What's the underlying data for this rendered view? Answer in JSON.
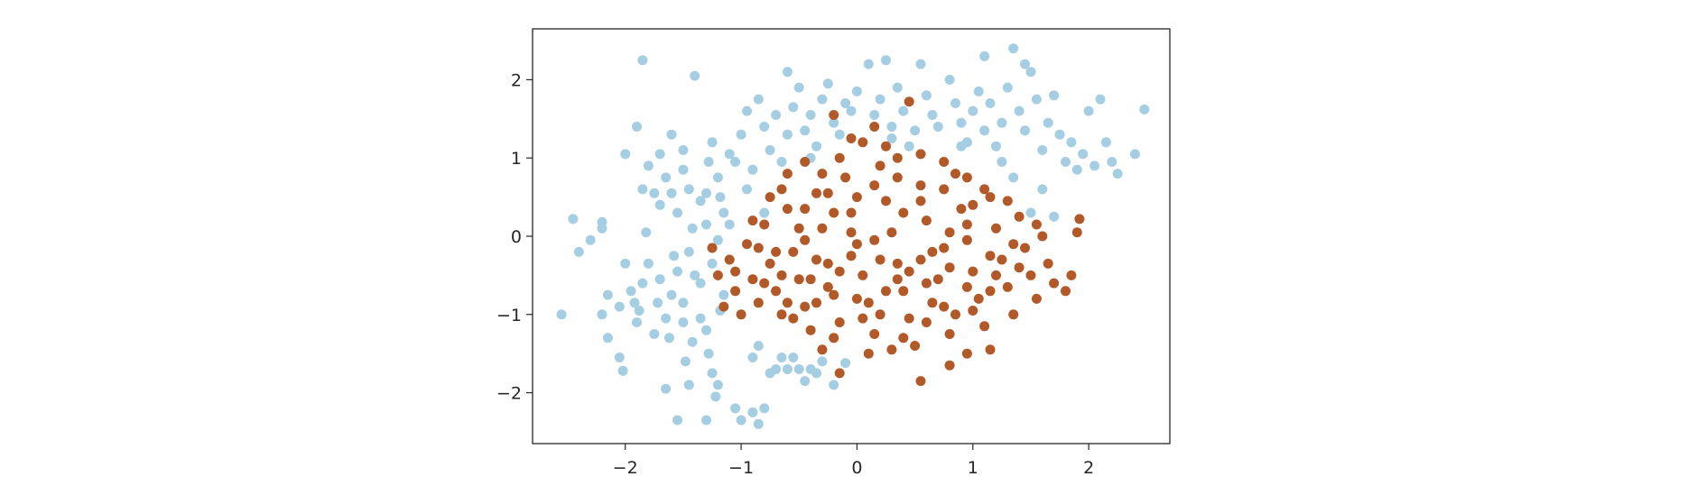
{
  "chart_data": {
    "type": "scatter",
    "xlim": [
      -2.8,
      2.7
    ],
    "ylim": [
      -2.65,
      2.65
    ],
    "x_ticks": [
      -2,
      -1,
      0,
      1,
      2
    ],
    "y_ticks": [
      -2,
      -1,
      0,
      1,
      2
    ],
    "x_tick_labels": [
      "−2",
      "−1",
      "0",
      "1",
      "2"
    ],
    "y_tick_labels": [
      "−2",
      "−1",
      "0",
      "1",
      "2"
    ],
    "grid": false,
    "legend": "none",
    "series": [
      {
        "color": "#a6cee3",
        "points": [
          [
            -2.55,
            -1.0
          ],
          [
            -2.45,
            0.22
          ],
          [
            -2.4,
            -0.2
          ],
          [
            -2.3,
            -0.05
          ],
          [
            -2.2,
            0.18
          ],
          [
            -2.2,
            0.1
          ],
          [
            -2.15,
            -0.75
          ],
          [
            -2.15,
            -1.3
          ],
          [
            -2.05,
            -1.55
          ],
          [
            -2.02,
            -1.72
          ],
          [
            -2.05,
            -0.9
          ],
          [
            -2.0,
            -0.35
          ],
          [
            -1.95,
            -0.7
          ],
          [
            -1.92,
            -0.85
          ],
          [
            -1.9,
            -1.1
          ],
          [
            -1.85,
            -0.6
          ],
          [
            -1.88,
            -0.95
          ],
          [
            -1.82,
            0.05
          ],
          [
            -1.8,
            -0.35
          ],
          [
            -1.75,
            -1.25
          ],
          [
            -1.72,
            -0.85
          ],
          [
            -1.7,
            -0.55
          ],
          [
            -1.65,
            -1.05
          ],
          [
            -1.62,
            -1.3
          ],
          [
            -1.6,
            -0.75
          ],
          [
            -1.58,
            -0.25
          ],
          [
            -1.55,
            -0.45
          ],
          [
            -1.5,
            -0.85
          ],
          [
            -1.5,
            -1.1
          ],
          [
            -1.48,
            -1.6
          ],
          [
            -1.45,
            -1.9
          ],
          [
            -1.42,
            -1.35
          ],
          [
            -1.4,
            -0.5
          ],
          [
            -1.35,
            -1.05
          ],
          [
            -1.3,
            -1.2
          ],
          [
            -1.28,
            -1.5
          ],
          [
            -1.25,
            -1.75
          ],
          [
            -1.22,
            -2.05
          ],
          [
            -1.2,
            -1.9
          ],
          [
            -1.18,
            -0.95
          ],
          [
            -1.15,
            -0.75
          ],
          [
            -1.1,
            -0.3
          ],
          [
            -1.05,
            -2.2
          ],
          [
            -1.0,
            -2.35
          ],
          [
            -0.9,
            -2.25
          ],
          [
            -0.85,
            -2.4
          ],
          [
            -0.8,
            -2.2
          ],
          [
            -0.75,
            -1.75
          ],
          [
            -0.7,
            -1.7
          ],
          [
            -0.65,
            -1.55
          ],
          [
            -0.6,
            -1.7
          ],
          [
            -0.55,
            -1.55
          ],
          [
            -0.5,
            -1.7
          ],
          [
            -0.45,
            -1.85
          ],
          [
            -0.4,
            -1.7
          ],
          [
            -0.35,
            -1.75
          ],
          [
            -0.3,
            -1.6
          ],
          [
            -0.2,
            -1.9
          ],
          [
            -0.1,
            -1.62
          ],
          [
            -0.85,
            -1.4
          ],
          [
            -0.9,
            -1.55
          ],
          [
            -1.3,
            -2.35
          ],
          [
            -1.55,
            -2.35
          ],
          [
            -1.65,
            -1.95
          ],
          [
            -2.2,
            -1.0
          ],
          [
            -1.85,
            0.6
          ],
          [
            -1.75,
            0.55
          ],
          [
            -1.7,
            0.4
          ],
          [
            -1.65,
            0.75
          ],
          [
            -1.6,
            0.55
          ],
          [
            -1.55,
            0.3
          ],
          [
            -1.5,
            0.85
          ],
          [
            -1.45,
            0.6
          ],
          [
            -1.42,
            0.1
          ],
          [
            -1.35,
            0.45
          ],
          [
            -1.3,
            0.55
          ],
          [
            -1.28,
            0.95
          ],
          [
            -1.25,
            1.2
          ],
          [
            -1.2,
            0.75
          ],
          [
            -1.18,
            0.5
          ],
          [
            -1.15,
            0.3
          ],
          [
            -1.1,
            1.05
          ],
          [
            -1.05,
            0.95
          ],
          [
            -1.0,
            1.3
          ],
          [
            -0.95,
            1.6
          ],
          [
            -0.9,
            0.85
          ],
          [
            -0.85,
            1.75
          ],
          [
            -0.8,
            1.4
          ],
          [
            -0.75,
            1.1
          ],
          [
            -0.7,
            1.55
          ],
          [
            -0.65,
            0.95
          ],
          [
            -0.6,
            1.3
          ],
          [
            -0.55,
            1.65
          ],
          [
            -0.5,
            1.9
          ],
          [
            -0.45,
            1.35
          ],
          [
            -0.4,
            1.55
          ],
          [
            -0.35,
            1.15
          ],
          [
            -0.3,
            1.75
          ],
          [
            -0.25,
            1.95
          ],
          [
            -0.2,
            1.45
          ],
          [
            -0.15,
            1.3
          ],
          [
            -0.1,
            1.7
          ],
          [
            -0.05,
            1.6
          ],
          [
            0.0,
            1.85
          ],
          [
            0.1,
            2.2
          ],
          [
            0.15,
            1.55
          ],
          [
            0.2,
            1.75
          ],
          [
            0.25,
            2.25
          ],
          [
            0.3,
            1.4
          ],
          [
            0.35,
            1.9
          ],
          [
            0.4,
            1.6
          ],
          [
            0.5,
            1.35
          ],
          [
            0.55,
            2.2
          ],
          [
            0.6,
            1.8
          ],
          [
            0.65,
            1.55
          ],
          [
            0.7,
            1.4
          ],
          [
            0.8,
            2.0
          ],
          [
            0.85,
            1.7
          ],
          [
            0.9,
            1.45
          ],
          [
            0.95,
            1.2
          ],
          [
            1.0,
            1.6
          ],
          [
            1.05,
            1.85
          ],
          [
            1.1,
            1.35
          ],
          [
            1.15,
            1.7
          ],
          [
            1.2,
            1.15
          ],
          [
            1.25,
            1.45
          ],
          [
            1.3,
            1.9
          ],
          [
            1.35,
            2.4
          ],
          [
            1.4,
            1.6
          ],
          [
            1.45,
            1.35
          ],
          [
            1.5,
            2.1
          ],
          [
            1.55,
            1.75
          ],
          [
            1.6,
            1.1
          ],
          [
            1.65,
            1.45
          ],
          [
            1.7,
            1.8
          ],
          [
            1.75,
            1.3
          ],
          [
            1.8,
            0.95
          ],
          [
            1.85,
            1.2
          ],
          [
            1.9,
            0.85
          ],
          [
            1.95,
            1.05
          ],
          [
            2.0,
            1.6
          ],
          [
            2.05,
            0.9
          ],
          [
            2.1,
            1.75
          ],
          [
            2.15,
            1.2
          ],
          [
            2.2,
            0.95
          ],
          [
            2.25,
            0.8
          ],
          [
            2.4,
            1.05
          ],
          [
            2.48,
            1.62
          ],
          [
            -2.0,
            1.05
          ],
          [
            -1.9,
            1.4
          ],
          [
            -1.8,
            0.9
          ],
          [
            -1.7,
            1.05
          ],
          [
            -1.6,
            1.3
          ],
          [
            -1.5,
            1.1
          ],
          [
            -1.4,
            2.05
          ],
          [
            -1.85,
            2.25
          ],
          [
            -0.6,
            2.1
          ],
          [
            -0.4,
            1.0
          ],
          [
            0.3,
            1.25
          ],
          [
            1.1,
            2.3
          ],
          [
            1.45,
            2.2
          ],
          [
            1.25,
            0.95
          ],
          [
            1.35,
            0.75
          ],
          [
            1.6,
            0.6
          ],
          [
            1.5,
            0.3
          ],
          [
            1.7,
            0.25
          ],
          [
            0.9,
            1.15
          ],
          [
            0.45,
            1.15
          ],
          [
            -1.3,
            0.15
          ],
          [
            -1.2,
            -0.05
          ],
          [
            -1.1,
            0.15
          ],
          [
            -0.95,
            0.6
          ],
          [
            -0.8,
            0.3
          ],
          [
            -1.45,
            -0.2
          ],
          [
            -1.35,
            -0.6
          ],
          [
            -1.25,
            -0.35
          ]
        ]
      },
      {
        "color": "#b15928",
        "points": [
          [
            -1.2,
            -0.5
          ],
          [
            -1.15,
            -0.9
          ],
          [
            -1.1,
            -0.3
          ],
          [
            -1.05,
            -0.7
          ],
          [
            -1.0,
            -1.0
          ],
          [
            -0.95,
            -0.1
          ],
          [
            -0.9,
            -0.55
          ],
          [
            -0.85,
            -0.85
          ],
          [
            -0.8,
            0.15
          ],
          [
            -0.75,
            -0.35
          ],
          [
            -0.7,
            -0.7
          ],
          [
            -0.65,
            -1.0
          ],
          [
            -0.6,
            0.35
          ],
          [
            -0.55,
            -0.2
          ],
          [
            -0.5,
            -0.55
          ],
          [
            -0.45,
            -0.9
          ],
          [
            -0.4,
            -1.2
          ],
          [
            -0.35,
            0.55
          ],
          [
            -0.3,
            0.1
          ],
          [
            -0.25,
            -0.35
          ],
          [
            -0.2,
            -0.75
          ],
          [
            -0.15,
            -1.1
          ],
          [
            -0.1,
            0.75
          ],
          [
            -0.05,
            0.3
          ],
          [
            0.0,
            -0.1
          ],
          [
            0.05,
            -0.5
          ],
          [
            0.1,
            -0.85
          ],
          [
            0.15,
            -1.25
          ],
          [
            0.2,
            0.9
          ],
          [
            0.25,
            0.45
          ],
          [
            0.3,
            0.05
          ],
          [
            0.35,
            -0.35
          ],
          [
            0.4,
            -0.7
          ],
          [
            0.45,
            -1.05
          ],
          [
            0.5,
            -1.4
          ],
          [
            0.55,
            0.65
          ],
          [
            0.6,
            0.2
          ],
          [
            0.65,
            -0.2
          ],
          [
            0.7,
            -0.55
          ],
          [
            0.75,
            -0.9
          ],
          [
            0.8,
            -1.25
          ],
          [
            0.85,
            0.8
          ],
          [
            0.9,
            0.35
          ],
          [
            0.95,
            -0.05
          ],
          [
            1.0,
            -0.45
          ],
          [
            1.05,
            -0.8
          ],
          [
            1.1,
            -1.15
          ],
          [
            1.15,
            0.5
          ],
          [
            1.2,
            0.1
          ],
          [
            1.25,
            -0.3
          ],
          [
            1.3,
            -0.65
          ],
          [
            1.35,
            -1.0
          ],
          [
            1.4,
            0.25
          ],
          [
            1.45,
            -0.15
          ],
          [
            1.5,
            -0.5
          ],
          [
            1.55,
            -0.8
          ],
          [
            1.6,
            0.0
          ],
          [
            1.65,
            -0.35
          ],
          [
            1.7,
            -0.6
          ],
          [
            1.8,
            -0.7
          ],
          [
            1.85,
            -0.5
          ],
          [
            1.9,
            0.05
          ],
          [
            1.92,
            0.22
          ],
          [
            -1.25,
            -0.15
          ],
          [
            -0.9,
            0.2
          ],
          [
            -0.75,
            0.5
          ],
          [
            -0.6,
            0.8
          ],
          [
            -0.45,
            0.95
          ],
          [
            -0.3,
            0.8
          ],
          [
            -0.15,
            1.0
          ],
          [
            0.05,
            1.2
          ],
          [
            0.15,
            1.4
          ],
          [
            0.35,
            1.0
          ],
          [
            0.45,
            1.72
          ],
          [
            0.55,
            1.05
          ],
          [
            0.75,
            0.95
          ],
          [
            0.95,
            0.75
          ],
          [
            1.1,
            0.6
          ],
          [
            1.3,
            0.45
          ],
          [
            -0.2,
            1.55
          ],
          [
            -0.05,
            1.25
          ],
          [
            0.25,
            1.15
          ],
          [
            -0.7,
            -0.2
          ],
          [
            -0.5,
            0.1
          ],
          [
            -0.35,
            -0.3
          ],
          [
            -0.2,
            0.3
          ],
          [
            0.0,
            0.5
          ],
          [
            0.2,
            -0.3
          ],
          [
            0.4,
            0.3
          ],
          [
            0.6,
            -0.6
          ],
          [
            0.8,
            0.05
          ],
          [
            1.0,
            0.4
          ],
          [
            1.2,
            -0.5
          ],
          [
            1.4,
            -0.4
          ],
          [
            -0.6,
            -0.85
          ],
          [
            -0.4,
            -0.55
          ],
          [
            -0.2,
            -1.3
          ],
          [
            0.0,
            -0.8
          ],
          [
            0.2,
            -1.0
          ],
          [
            0.4,
            -1.3
          ],
          [
            0.6,
            -1.1
          ],
          [
            0.8,
            -0.4
          ],
          [
            1.0,
            -0.95
          ],
          [
            -0.8,
            -0.6
          ],
          [
            -0.3,
            -1.45
          ],
          [
            0.1,
            -1.5
          ],
          [
            0.3,
            -1.45
          ],
          [
            0.55,
            -1.85
          ],
          [
            -0.15,
            -1.75
          ],
          [
            0.8,
            -1.65
          ],
          [
            0.95,
            -1.5
          ],
          [
            1.15,
            -1.45
          ],
          [
            -0.65,
            0.6
          ],
          [
            -0.45,
            0.35
          ],
          [
            -0.25,
            0.55
          ],
          [
            -0.05,
            0.05
          ],
          [
            0.15,
            0.65
          ],
          [
            0.35,
            0.75
          ],
          [
            0.55,
            0.45
          ],
          [
            0.75,
            0.6
          ],
          [
            0.95,
            0.15
          ],
          [
            1.15,
            -0.25
          ],
          [
            1.35,
            -0.1
          ],
          [
            1.55,
            0.15
          ],
          [
            -1.05,
            -0.45
          ],
          [
            -0.85,
            -0.15
          ],
          [
            -0.65,
            -0.5
          ],
          [
            -0.45,
            -0.05
          ],
          [
            -0.25,
            -0.65
          ],
          [
            -0.05,
            -0.25
          ],
          [
            0.15,
            -0.05
          ],
          [
            0.35,
            -0.55
          ],
          [
            0.55,
            -0.3
          ],
          [
            0.75,
            -0.15
          ],
          [
            0.95,
            -0.65
          ],
          [
            1.15,
            -0.7
          ],
          [
            -0.55,
            -1.05
          ],
          [
            -0.35,
            -0.85
          ],
          [
            -0.15,
            -0.45
          ],
          [
            0.05,
            -1.05
          ],
          [
            0.25,
            -0.7
          ],
          [
            0.45,
            -0.45
          ],
          [
            0.65,
            -0.85
          ],
          [
            0.85,
            -1.0
          ]
        ]
      }
    ]
  }
}
